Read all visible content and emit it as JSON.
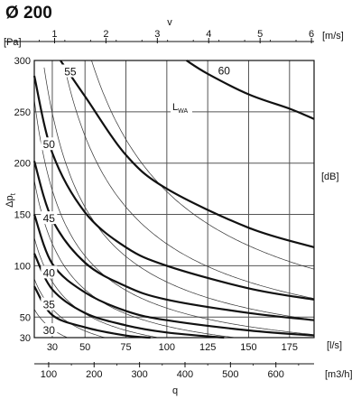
{
  "chart_data": {
    "type": "line",
    "title": "Ø 200",
    "ylabel_main": "Δp",
    "ylabel_sub": "t",
    "y_unit": "[Pa]",
    "ylim": [
      30,
      300
    ],
    "y_ticks": [
      30,
      50,
      100,
      150,
      200,
      250,
      300
    ],
    "right_unit": "[dB]",
    "grid": true,
    "top_axis": {
      "label": "v",
      "unit": "[m/s]",
      "ticks": [
        1,
        2,
        3,
        4,
        5,
        6
      ]
    },
    "ls_axis": {
      "unit": "[l/s]",
      "ticks": [
        30,
        50,
        75,
        100,
        125,
        150,
        175
      ],
      "range": [
        19,
        190
      ]
    },
    "q_axis": {
      "label": "q",
      "unit": "[m3/h]",
      "ticks": [
        100,
        200,
        300,
        400,
        500,
        600
      ]
    },
    "sound_curves_label_main": "L",
    "sound_curves_label_sub": "WA",
    "series": [
      {
        "name": "30",
        "points": [
          [
            19,
            80
          ],
          [
            30,
            52
          ],
          [
            50,
            40
          ],
          [
            75,
            32
          ],
          [
            90,
            30
          ]
        ]
      },
      {
        "name": "35",
        "points": [
          [
            19,
            112
          ],
          [
            30,
            77
          ],
          [
            50,
            54
          ],
          [
            75,
            42
          ],
          [
            100,
            35
          ],
          [
            135,
            30
          ]
        ]
      },
      {
        "name": "40",
        "points": [
          [
            19,
            150
          ],
          [
            30,
            102
          ],
          [
            50,
            74
          ],
          [
            75,
            56
          ],
          [
            100,
            47
          ],
          [
            150,
            37
          ],
          [
            190,
            32
          ]
        ]
      },
      {
        "name": "45",
        "points": [
          [
            19,
            202
          ],
          [
            30,
            145
          ],
          [
            50,
            103
          ],
          [
            75,
            80
          ],
          [
            100,
            67
          ],
          [
            150,
            54
          ],
          [
            190,
            47
          ]
        ]
      },
      {
        "name": "50",
        "points": [
          [
            19,
            285
          ],
          [
            30,
            210
          ],
          [
            50,
            152
          ],
          [
            75,
            118
          ],
          [
            100,
            100
          ],
          [
            150,
            78
          ],
          [
            190,
            67
          ]
        ]
      },
      {
        "name": "55",
        "points": [
          [
            35,
            300
          ],
          [
            50,
            265
          ],
          [
            75,
            208
          ],
          [
            100,
            175
          ],
          [
            150,
            137
          ],
          [
            190,
            118
          ]
        ]
      },
      {
        "name": "60",
        "points": [
          [
            112,
            300
          ],
          [
            125,
            287
          ],
          [
            150,
            267
          ],
          [
            175,
            253
          ],
          [
            190,
            243
          ]
        ]
      }
    ],
    "curve_labels": [
      {
        "text": "30",
        "x": 28,
        "y": 37
      },
      {
        "text": "35",
        "x": 28,
        "y": 62
      },
      {
        "text": "40",
        "x": 28,
        "y": 93
      },
      {
        "text": "45",
        "x": 28,
        "y": 146
      },
      {
        "text": "50",
        "x": 28,
        "y": 218
      },
      {
        "text": "55",
        "x": 41,
        "y": 289
      },
      {
        "text": "60",
        "x": 135,
        "y": 290
      }
    ]
  }
}
